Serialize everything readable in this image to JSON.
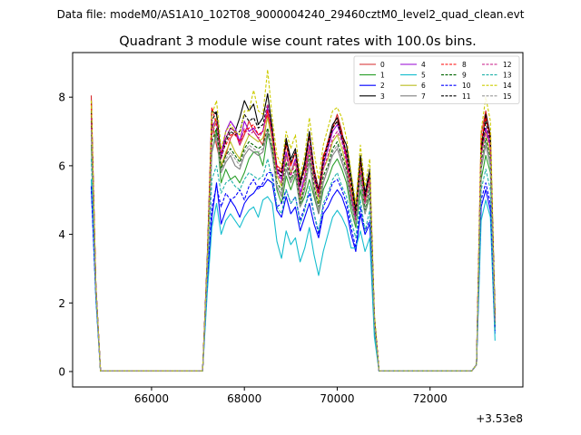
{
  "figure": {
    "suptitle": "Data file: modeM0/AS1A10_102T08_9000004240_29460cztM0_level2_quad_clean.evt"
  },
  "chart_data": {
    "type": "line",
    "title": "Quadrant 3 module wise count rates with 100.0s bins.",
    "xlabel": "",
    "ylabel": "",
    "x_offset_label": "+3.53e8",
    "xlim": [
      64300,
      74000
    ],
    "ylim": [
      -0.45,
      9.3
    ],
    "xticks": [
      66000,
      68000,
      70000,
      72000
    ],
    "xtick_labels": [
      "66000",
      "68000",
      "70000",
      "72000"
    ],
    "yticks": [
      0,
      2,
      4,
      6,
      8
    ],
    "ytick_labels": [
      "0",
      "2",
      "4",
      "6",
      "8"
    ],
    "grid": false,
    "legend_position": "upper-right",
    "legend_ncol": 4,
    "x": [
      64700,
      64800,
      64900,
      67100,
      67200,
      67300,
      67400,
      67500,
      67600,
      67700,
      67800,
      67900,
      68000,
      68100,
      68200,
      68300,
      68400,
      68500,
      68600,
      68700,
      68800,
      68900,
      69000,
      69100,
      69200,
      69300,
      69400,
      69500,
      69600,
      69700,
      69800,
      69900,
      70000,
      70100,
      70200,
      70300,
      70400,
      70500,
      70600,
      70700,
      70800,
      70900,
      72900,
      73000,
      73100,
      73200,
      73300,
      73400
    ],
    "series": [
      {
        "name": "0",
        "color": "#d62728",
        "dash": "solid",
        "values": [
          8.05,
          2.5,
          0.02,
          0.02,
          3.2,
          7.3,
          6.6,
          6.0,
          6.3,
          6.8,
          7.0,
          6.6,
          6.9,
          7.3,
          7.0,
          6.8,
          6.6,
          7.5,
          6.9,
          6.0,
          5.9,
          6.6,
          6.0,
          6.4,
          5.6,
          5.9,
          6.9,
          5.9,
          5.2,
          6.3,
          6.6,
          7.1,
          7.5,
          7.0,
          6.3,
          5.2,
          4.3,
          6.2,
          5.0,
          5.8,
          1.6,
          0.02,
          0.02,
          0.2,
          6.9,
          7.6,
          6.8,
          1.6
        ]
      },
      {
        "name": "1",
        "color": "#2ca02c",
        "dash": "solid",
        "values": [
          6.6,
          2.4,
          0.02,
          0.02,
          3.0,
          6.4,
          7.0,
          5.5,
          5.9,
          5.6,
          5.7,
          5.5,
          5.8,
          6.2,
          6.4,
          6.4,
          6.0,
          6.9,
          6.5,
          5.3,
          4.9,
          5.7,
          5.3,
          5.7,
          4.8,
          5.1,
          5.6,
          5.1,
          4.6,
          5.3,
          5.6,
          6.0,
          6.2,
          5.9,
          5.5,
          4.7,
          4.2,
          5.3,
          4.6,
          5.1,
          1.4,
          0.02,
          0.02,
          0.2,
          5.6,
          6.3,
          5.8,
          1.3
        ]
      },
      {
        "name": "2",
        "color": "#0000ff",
        "dash": "solid",
        "values": [
          5.4,
          2.2,
          0.02,
          0.02,
          2.5,
          4.5,
          5.5,
          4.3,
          4.7,
          5.0,
          4.8,
          4.5,
          4.9,
          5.1,
          5.2,
          5.4,
          5.4,
          5.6,
          5.5,
          4.7,
          4.5,
          5.1,
          4.6,
          4.8,
          4.1,
          4.5,
          4.9,
          4.3,
          3.9,
          4.6,
          4.8,
          5.1,
          5.3,
          5.1,
          4.7,
          4.0,
          3.5,
          4.6,
          4.0,
          4.3,
          1.2,
          0.02,
          0.02,
          0.2,
          4.8,
          5.3,
          4.7,
          1.1
        ]
      },
      {
        "name": "3",
        "color": "#000000",
        "dash": "solid",
        "values": [
          7.9,
          2.5,
          0.02,
          0.02,
          3.3,
          7.6,
          7.5,
          6.3,
          6.8,
          7.1,
          7.0,
          7.4,
          7.9,
          7.6,
          7.8,
          7.2,
          7.4,
          8.1,
          7.1,
          5.9,
          5.8,
          6.8,
          6.2,
          6.5,
          5.5,
          6.1,
          7.0,
          5.9,
          5.3,
          6.2,
          6.7,
          7.2,
          7.4,
          6.9,
          6.6,
          5.7,
          4.7,
          6.3,
          5.2,
          5.9,
          1.6,
          0.02,
          0.02,
          0.2,
          6.5,
          7.5,
          6.9,
          1.7
        ]
      },
      {
        "name": "4",
        "color": "#9400d3",
        "dash": "solid",
        "values": [
          7.5,
          2.5,
          0.02,
          0.02,
          3.2,
          7.1,
          7.4,
          6.3,
          7.0,
          7.3,
          7.1,
          6.7,
          7.3,
          7.0,
          7.1,
          6.9,
          7.0,
          7.7,
          6.9,
          5.9,
          5.6,
          6.4,
          5.8,
          6.2,
          5.2,
          5.7,
          6.6,
          5.7,
          5.2,
          6.0,
          6.5,
          7.0,
          7.2,
          6.8,
          6.2,
          5.2,
          4.5,
          6.0,
          5.0,
          5.7,
          1.5,
          0.02,
          0.02,
          0.2,
          6.4,
          7.1,
          6.6,
          1.5
        ]
      },
      {
        "name": "5",
        "color": "#17becf",
        "dash": "solid",
        "values": [
          5.6,
          2.1,
          0.02,
          0.02,
          2.3,
          4.2,
          4.9,
          4.0,
          4.4,
          4.6,
          4.4,
          4.2,
          4.5,
          4.7,
          4.8,
          4.5,
          5.0,
          5.1,
          4.9,
          3.8,
          3.3,
          4.1,
          3.7,
          3.9,
          3.2,
          3.6,
          4.2,
          3.4,
          2.8,
          3.5,
          4.0,
          4.5,
          4.7,
          4.5,
          4.2,
          3.6,
          3.6,
          4.1,
          3.5,
          3.9,
          1.0,
          0.02,
          0.02,
          0.2,
          4.4,
          5.0,
          4.5,
          0.9
        ]
      },
      {
        "name": "6",
        "color": "#bcbd22",
        "dash": "solid",
        "values": [
          7.7,
          2.5,
          0.02,
          0.02,
          3.1,
          6.9,
          7.4,
          6.0,
          6.4,
          6.7,
          6.4,
          6.2,
          6.6,
          6.9,
          6.8,
          6.7,
          6.8,
          7.4,
          6.7,
          5.7,
          5.4,
          6.3,
          5.8,
          6.1,
          5.0,
          5.6,
          6.5,
          5.6,
          4.9,
          5.9,
          6.2,
          6.7,
          6.9,
          6.5,
          6.0,
          5.3,
          4.6,
          6.0,
          4.9,
          5.6,
          1.5,
          0.02,
          0.02,
          0.2,
          6.3,
          7.0,
          6.3,
          1.4
        ]
      },
      {
        "name": "7",
        "color": "#7f7f7f",
        "dash": "solid",
        "values": [
          7.0,
          2.4,
          0.02,
          0.02,
          3.0,
          6.4,
          6.9,
          5.8,
          6.1,
          6.3,
          6.0,
          5.9,
          6.3,
          6.5,
          6.4,
          6.3,
          6.4,
          7.0,
          6.3,
          5.4,
          5.1,
          5.9,
          5.5,
          5.8,
          4.8,
          5.3,
          6.1,
          5.2,
          4.6,
          5.5,
          5.9,
          6.3,
          6.5,
          6.1,
          5.7,
          4.9,
          4.3,
          5.6,
          4.6,
          5.3,
          1.4,
          0.02,
          0.02,
          0.2,
          5.9,
          6.6,
          6.0,
          1.3
        ]
      },
      {
        "name": "8",
        "color": "#ff0000",
        "dash": "dashed",
        "values": [
          7.8,
          2.5,
          0.02,
          0.02,
          3.2,
          7.7,
          7.2,
          6.4,
          6.6,
          6.9,
          6.9,
          6.7,
          7.0,
          7.1,
          7.2,
          6.9,
          7.0,
          7.6,
          7.0,
          6.0,
          5.8,
          6.7,
          6.0,
          6.4,
          5.4,
          5.9,
          6.9,
          5.9,
          5.2,
          6.2,
          6.7,
          7.1,
          7.3,
          6.9,
          6.3,
          5.4,
          4.6,
          6.2,
          5.0,
          5.8,
          1.6,
          0.02,
          0.02,
          0.2,
          6.7,
          7.4,
          6.8,
          1.6
        ]
      },
      {
        "name": "9",
        "color": "#006400",
        "dash": "dashed",
        "values": [
          7.3,
          2.4,
          0.02,
          0.02,
          3.1,
          6.7,
          7.1,
          5.9,
          6.3,
          6.5,
          6.3,
          6.1,
          6.5,
          6.7,
          6.6,
          6.5,
          6.6,
          7.1,
          6.5,
          5.5,
          5.3,
          6.1,
          5.6,
          5.9,
          4.9,
          5.4,
          6.3,
          5.4,
          4.8,
          5.7,
          6.0,
          6.5,
          6.7,
          6.3,
          5.9,
          5.0,
          4.4,
          5.8,
          4.7,
          5.4,
          1.4,
          0.02,
          0.02,
          0.2,
          6.1,
          6.8,
          6.2,
          1.4
        ]
      },
      {
        "name": "10",
        "color": "#0000ff",
        "dash": "dashed",
        "values": [
          5.4,
          2.2,
          0.02,
          0.02,
          2.7,
          4.8,
          5.4,
          4.8,
          5.2,
          5.0,
          5.1,
          5.3,
          5.0,
          5.4,
          5.6,
          5.3,
          5.5,
          5.8,
          5.8,
          4.8,
          4.9,
          5.3,
          4.9,
          5.1,
          4.4,
          4.8,
          5.2,
          4.6,
          4.0,
          4.8,
          5.1,
          5.5,
          5.6,
          5.3,
          4.9,
          4.2,
          3.6,
          4.8,
          4.1,
          4.4,
          1.3,
          0.02,
          0.02,
          0.2,
          5.0,
          5.5,
          4.9,
          1.2
        ]
      },
      {
        "name": "11",
        "color": "#000000",
        "dash": "dashed",
        "values": [
          7.6,
          2.5,
          0.02,
          0.02,
          3.2,
          7.3,
          7.6,
          6.2,
          6.7,
          7.0,
          6.9,
          7.0,
          7.5,
          7.3,
          7.4,
          7.1,
          7.2,
          7.8,
          7.0,
          5.8,
          5.7,
          6.7,
          6.1,
          6.4,
          5.4,
          6.0,
          6.9,
          5.8,
          5.1,
          6.1,
          6.6,
          7.1,
          7.3,
          6.8,
          6.4,
          5.5,
          4.6,
          6.2,
          5.1,
          5.8,
          1.6,
          0.02,
          0.02,
          0.2,
          6.4,
          7.3,
          6.7,
          1.6
        ]
      },
      {
        "name": "12",
        "color": "#c71585",
        "dash": "dashed",
        "values": [
          7.4,
          2.5,
          0.02,
          0.02,
          3.1,
          6.9,
          7.3,
          6.2,
          6.8,
          7.1,
          7.0,
          6.6,
          7.1,
          6.9,
          7.0,
          6.8,
          7.0,
          7.8,
          6.8,
          5.8,
          5.5,
          6.3,
          5.7,
          6.1,
          5.1,
          5.6,
          6.5,
          5.6,
          5.1,
          5.9,
          6.3,
          6.8,
          7.0,
          6.7,
          6.1,
          5.1,
          4.4,
          5.9,
          4.9,
          5.6,
          1.5,
          0.02,
          0.02,
          0.2,
          6.3,
          7.0,
          6.5,
          1.5
        ]
      },
      {
        "name": "13",
        "color": "#20b2aa",
        "dash": "dashed",
        "values": [
          6.2,
          2.3,
          0.02,
          0.02,
          2.8,
          5.6,
          6.0,
          5.2,
          5.5,
          5.6,
          5.4,
          5.3,
          5.6,
          5.8,
          5.7,
          5.6,
          5.7,
          6.2,
          5.6,
          4.8,
          4.6,
          5.3,
          4.9,
          5.1,
          4.3,
          4.7,
          5.4,
          4.6,
          4.1,
          4.9,
          5.2,
          5.6,
          5.8,
          5.4,
          5.1,
          4.4,
          3.9,
          5.0,
          4.1,
          4.7,
          1.2,
          0.02,
          0.02,
          0.2,
          5.3,
          5.9,
          5.3,
          1.2
        ]
      },
      {
        "name": "14",
        "color": "#cccc00",
        "dash": "dashed",
        "values": [
          7.9,
          2.5,
          0.02,
          0.02,
          3.2,
          7.5,
          7.9,
          6.5,
          7.0,
          7.2,
          7.0,
          6.9,
          7.6,
          7.6,
          8.2,
          7.6,
          7.5,
          8.8,
          7.4,
          6.3,
          6.0,
          7.0,
          6.5,
          6.9,
          5.7,
          6.3,
          7.4,
          6.4,
          5.6,
          6.6,
          7.1,
          7.6,
          7.7,
          7.4,
          6.8,
          5.8,
          4.9,
          6.6,
          5.4,
          6.2,
          1.7,
          0.02,
          0.02,
          0.2,
          7.0,
          8.0,
          7.3,
          1.6
        ]
      },
      {
        "name": "15",
        "color": "#999999",
        "dash": "dashed",
        "values": [
          7.0,
          2.4,
          0.02,
          0.02,
          3.0,
          6.5,
          6.8,
          5.8,
          6.2,
          6.4,
          6.2,
          6.0,
          6.4,
          6.6,
          6.5,
          6.4,
          6.5,
          7.0,
          6.4,
          5.4,
          5.2,
          6.0,
          5.5,
          5.8,
          4.8,
          5.3,
          6.2,
          5.3,
          4.7,
          5.6,
          5.9,
          6.4,
          6.6,
          6.2,
          5.8,
          5.0,
          4.3,
          5.7,
          4.6,
          5.3,
          1.4,
          0.02,
          0.02,
          0.2,
          6.0,
          6.7,
          6.1,
          1.4
        ]
      }
    ]
  }
}
